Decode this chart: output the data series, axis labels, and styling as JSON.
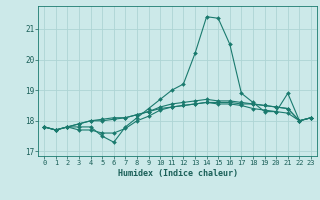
{
  "xlabel": "Humidex (Indice chaleur)",
  "background_color": "#cce9e9",
  "grid_color": "#aed4d4",
  "line_color": "#1a7a6e",
  "xlim": [
    -0.5,
    23.5
  ],
  "ylim": [
    16.85,
    21.75
  ],
  "yticks": [
    17,
    18,
    19,
    20,
    21
  ],
  "xticks": [
    0,
    1,
    2,
    3,
    4,
    5,
    6,
    7,
    8,
    9,
    10,
    11,
    12,
    13,
    14,
    15,
    16,
    17,
    18,
    19,
    20,
    21,
    22,
    23
  ],
  "lines": [
    [
      17.8,
      17.7,
      17.8,
      17.8,
      17.8,
      17.5,
      17.3,
      17.8,
      18.1,
      18.4,
      18.7,
      19.0,
      19.2,
      20.2,
      21.4,
      21.35,
      20.5,
      18.9,
      18.6,
      18.3,
      18.3,
      18.9,
      18.0,
      18.1
    ],
    [
      17.8,
      17.7,
      17.8,
      17.7,
      17.7,
      17.6,
      17.6,
      17.75,
      18.0,
      18.15,
      18.35,
      18.45,
      18.5,
      18.55,
      18.6,
      18.6,
      18.6,
      18.55,
      18.55,
      18.5,
      18.45,
      18.4,
      18.0,
      18.1
    ],
    [
      17.8,
      17.7,
      17.8,
      17.9,
      18.0,
      18.0,
      18.05,
      18.1,
      18.2,
      18.3,
      18.45,
      18.55,
      18.6,
      18.65,
      18.7,
      18.65,
      18.65,
      18.6,
      18.55,
      18.5,
      18.45,
      18.4,
      18.0,
      18.1
    ],
    [
      17.8,
      17.7,
      17.8,
      17.9,
      18.0,
      18.05,
      18.1,
      18.1,
      18.2,
      18.3,
      18.4,
      18.45,
      18.5,
      18.55,
      18.6,
      18.55,
      18.55,
      18.5,
      18.4,
      18.35,
      18.3,
      18.25,
      18.0,
      18.1
    ]
  ]
}
